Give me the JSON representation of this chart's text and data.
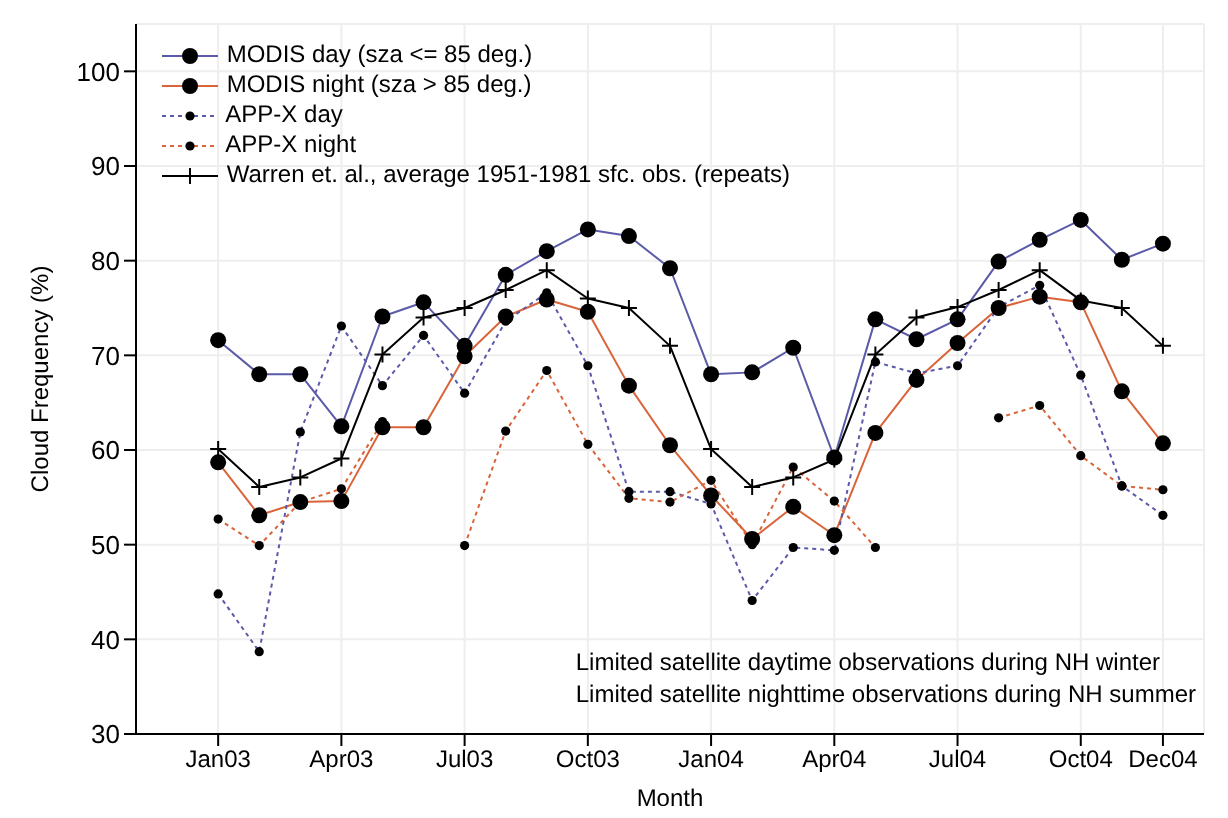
{
  "chart_data": {
    "type": "line",
    "xlabel": "Month",
    "ylabel": "Cloud Frequency (%)",
    "x": [
      "2003-01",
      "2003-02",
      "2003-03",
      "2003-04",
      "2003-05",
      "2003-06",
      "2003-07",
      "2003-08",
      "2003-09",
      "2003-10",
      "2003-11",
      "2003-12",
      "2004-01",
      "2004-02",
      "2004-03",
      "2004-04",
      "2004-05",
      "2004-06",
      "2004-07",
      "2004-08",
      "2004-09",
      "2004-10",
      "2004-11",
      "2004-12"
    ],
    "series": [
      {
        "name": "MODIS day (sza <= 85 deg.)",
        "color": "#5a5aa8",
        "marker": "circle",
        "line_style": "solid",
        "values": [
          71.6,
          68.0,
          68.0,
          62.5,
          74.1,
          75.6,
          71.0,
          78.5,
          81.0,
          83.3,
          82.6,
          79.2,
          68.0,
          68.2,
          70.8,
          59.2,
          73.8,
          71.7,
          73.8,
          79.9,
          82.2,
          84.3,
          80.1,
          81.8
        ]
      },
      {
        "name": "MODIS night (sza > 85 deg.)",
        "color": "#d9643a",
        "marker": "circle",
        "line_style": "solid",
        "values": [
          58.7,
          53.1,
          54.5,
          54.6,
          62.4,
          62.4,
          69.9,
          74.1,
          75.9,
          74.6,
          66.8,
          60.5,
          55.2,
          50.6,
          54.0,
          51.0,
          61.8,
          67.4,
          71.3,
          75.0,
          76.2,
          75.6,
          66.2,
          60.7
        ]
      },
      {
        "name": "APP-X day",
        "color": "#5a5aa8",
        "marker": "circle",
        "line_style": "dotted",
        "values": [
          44.8,
          38.7,
          61.9,
          73.1,
          66.8,
          72.1,
          66.0,
          73.6,
          76.6,
          68.9,
          55.6,
          55.6,
          54.3,
          44.1,
          49.7,
          49.4,
          69.3,
          68.1,
          68.9,
          75.1,
          77.4,
          67.9,
          56.2,
          53.1
        ]
      },
      {
        "name": "APP-X night",
        "color": "#d9643a",
        "marker": "circle",
        "line_style": "dotted",
        "values": [
          52.7,
          49.9,
          54.5,
          55.9,
          63.0,
          null,
          49.9,
          62.0,
          68.4,
          60.6,
          54.9,
          54.5,
          56.8,
          50.0,
          58.2,
          54.6,
          49.7,
          null,
          null,
          63.4,
          64.7,
          59.4,
          56.2,
          55.8
        ]
      },
      {
        "name": "Warren et. al., average 1951-1981 sfc. obs. (repeats)",
        "color": "#000000",
        "marker": "cross",
        "line_style": "solid",
        "values": [
          60.1,
          56.1,
          57.1,
          59.1,
          70.1,
          74.0,
          75.0,
          76.9,
          79.0,
          76.0,
          75.0,
          71.0,
          60.1,
          56.1,
          57.1,
          59.0,
          70.1,
          74.0,
          75.1,
          76.9,
          79.0,
          75.8,
          75.0,
          71.0
        ]
      }
    ],
    "xlim": [
      "2002-11",
      "2005-01"
    ],
    "xticks": [
      {
        "value": "2003-01",
        "label": "Jan03"
      },
      {
        "value": "2003-04",
        "label": "Apr03"
      },
      {
        "value": "2003-07",
        "label": "Jul03"
      },
      {
        "value": "2003-10",
        "label": "Oct03"
      },
      {
        "value": "2004-01",
        "label": "Jan04"
      },
      {
        "value": "2004-04",
        "label": "Apr04"
      },
      {
        "value": "2004-07",
        "label": "Jul04"
      },
      {
        "value": "2004-10",
        "label": "Oct04"
      },
      {
        "value": "2004-12",
        "label": "Dec04"
      }
    ],
    "ylim": [
      30,
      105
    ],
    "yticks": [
      30,
      40,
      50,
      60,
      70,
      80,
      90,
      100
    ],
    "grid": true,
    "legend": "top left",
    "annotations": [
      "Limited satellite daytime observations during NH winter",
      "Limited satellite nighttime observations during NH summer"
    ]
  }
}
